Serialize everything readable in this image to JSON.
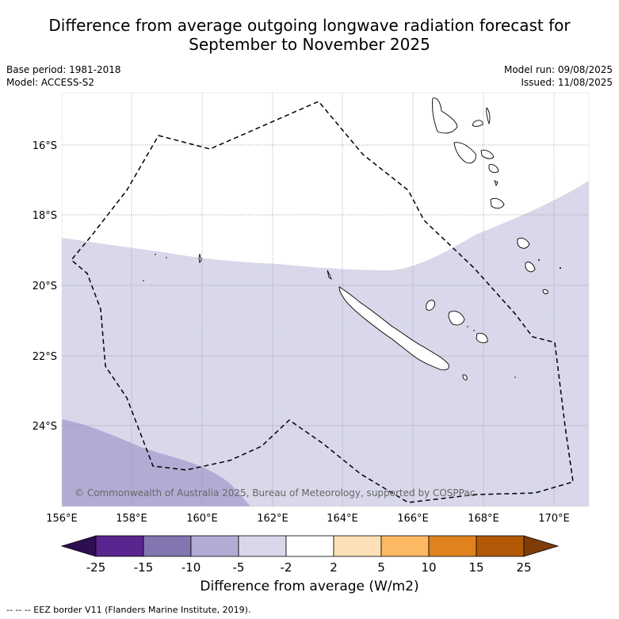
{
  "title_line1": "Difference from average outgoing longwave radiation forecast for",
  "title_line2": "September to November 2025",
  "base_period": "Base period: 1981-2018",
  "model": "Model: ACCESS-S2",
  "model_run": "Model run: 09/08/2025",
  "issued": "Issued: 11/08/2025",
  "copyright": "© Commonwealth of Australia 2025, Bureau of Meteorology, supported by COSPPac",
  "lon_ticks": [
    "156°E",
    "158°E",
    "160°E",
    "162°E",
    "164°E",
    "166°E",
    "168°E",
    "170°E"
  ],
  "lat_ticks": [
    "16°S",
    "18°S",
    "20°S",
    "22°S",
    "24°S"
  ],
  "colorbar": {
    "labels": [
      "-25",
      "-15",
      "-10",
      "-5",
      "-2",
      "2",
      "5",
      "10",
      "15",
      "25"
    ],
    "colors": {
      "extend_low": "#2d0f4f",
      "c1": "#5b2590",
      "c2": "#8275b0",
      "c3": "#b2acd4",
      "c4": "#d8d8ea",
      "c5": "#ffffff",
      "c6": "#fde0b6",
      "c7": "#fdb863",
      "c8": "#e0821e",
      "c9": "#b35806",
      "extend_high": "#7f3b08"
    },
    "title": "Difference from average (W/m2)"
  },
  "footnote": "--  --  -- EEZ border V11 (Flanders Marine Institute, 2019)."
}
